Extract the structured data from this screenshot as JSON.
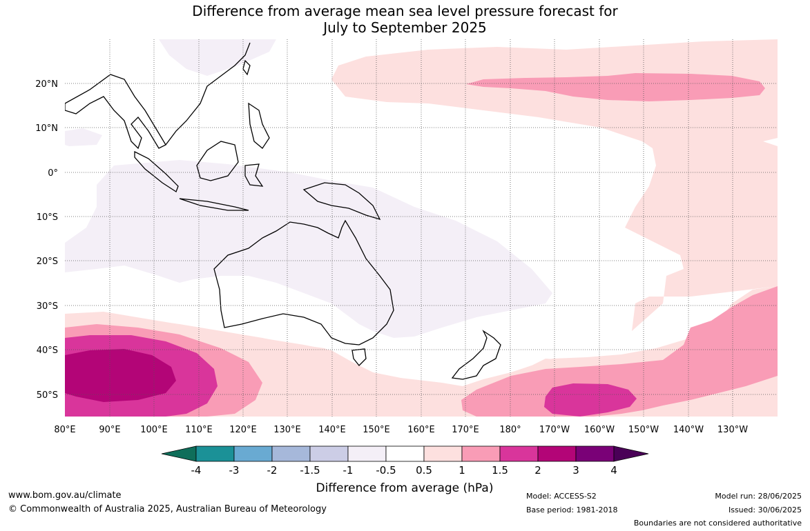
{
  "title_line1": "Difference from average mean sea level pressure forecast for",
  "title_line2": "July to September 2025",
  "lat_labels": [
    "20°N",
    "10°N",
    "0°",
    "10°S",
    "20°S",
    "30°S",
    "40°S",
    "50°S"
  ],
  "lon_labels": [
    "80°E",
    "90°E",
    "100°E",
    "110°E",
    "120°E",
    "130°E",
    "140°E",
    "150°E",
    "160°E",
    "170°E",
    "180°",
    "170°W",
    "160°W",
    "150°W",
    "140°W",
    "130°W"
  ],
  "colorbar": {
    "label": "Difference from average (hPa)",
    "ticks": [
      "-4",
      "-3",
      "-2",
      "-1.5",
      "-1",
      "-0.5",
      "0.5",
      "1",
      "1.5",
      "2",
      "3",
      "4"
    ],
    "colors": [
      "#0f6e5a",
      "#1b9197",
      "#69aad2",
      "#a6b8da",
      "#cccde6",
      "#f4eff7",
      "#ffffff",
      "#fde0df",
      "#f99cb6",
      "#d9359b",
      "#b30577",
      "#7a0177",
      "#4a0057"
    ]
  },
  "footer": {
    "url": "www.bom.gov.au/climate",
    "copyright": "© Commonwealth of Australia 2025, Australian Bureau of Meteorology",
    "model": "Model: ACCESS-S2",
    "base_period": "Base period: 1981-2018",
    "model_run": "Model run: 28/06/2025",
    "issued": "Issued: 30/06/2025",
    "disclaimer": "Boundaries are not considered authoritative"
  }
}
